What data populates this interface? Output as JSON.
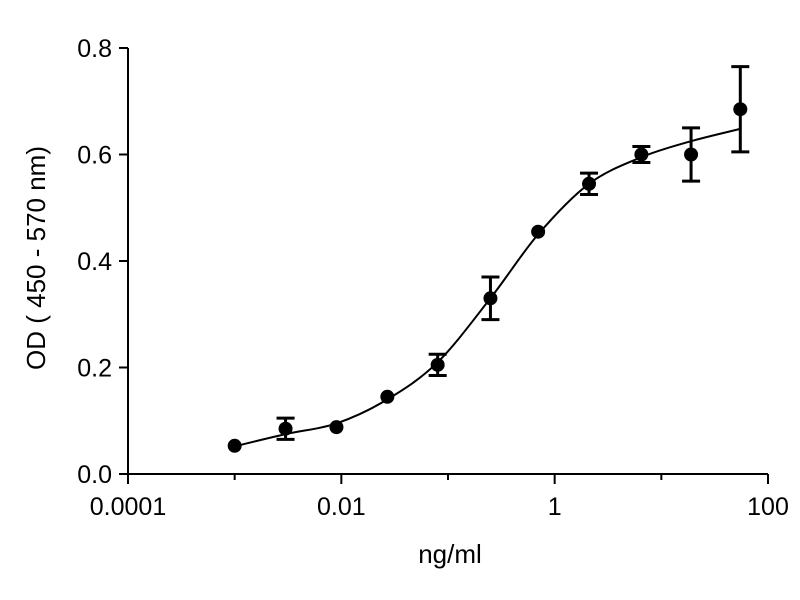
{
  "chart_data": {
    "type": "scatter",
    "title": "",
    "xlabel": "ng/ml",
    "ylabel": "OD ( 450 - 570 nm)",
    "x_scale": "log",
    "xlim": [
      0.0001,
      100
    ],
    "ylim": [
      0,
      0.8
    ],
    "x_ticks": [
      0.0001,
      0.01,
      1,
      100
    ],
    "x_tick_labels": [
      "0.0001",
      "0.01",
      "1",
      "100"
    ],
    "y_ticks": [
      0,
      0.2,
      0.4,
      0.6,
      0.8
    ],
    "y_tick_labels": [
      "0.0",
      "0.2",
      "0.4",
      "0.6",
      "0.8"
    ],
    "grid": false,
    "legend": "none",
    "series": [
      {
        "points": [
          {
            "x": 0.001,
            "y": 0.053,
            "err": 0.0
          },
          {
            "x": 0.003,
            "y": 0.085,
            "err": 0.02
          },
          {
            "x": 0.009,
            "y": 0.088,
            "err": 0.0
          },
          {
            "x": 0.027,
            "y": 0.145,
            "err": 0.0
          },
          {
            "x": 0.08,
            "y": 0.205,
            "err": 0.02
          },
          {
            "x": 0.25,
            "y": 0.33,
            "err": 0.04
          },
          {
            "x": 0.7,
            "y": 0.455,
            "err": 0.0
          },
          {
            "x": 2.1,
            "y": 0.545,
            "err": 0.02
          },
          {
            "x": 6.5,
            "y": 0.6,
            "err": 0.015
          },
          {
            "x": 19,
            "y": 0.6,
            "err": 0.05
          },
          {
            "x": 55,
            "y": 0.685,
            "err": 0.08
          }
        ],
        "fit_curve": {
          "x": [
            0.001,
            0.003,
            0.009,
            0.027,
            0.08,
            0.25,
            0.7,
            2.1,
            6.5,
            19,
            55
          ],
          "y": [
            0.052,
            0.075,
            0.095,
            0.14,
            0.21,
            0.33,
            0.45,
            0.545,
            0.595,
            0.625,
            0.648
          ]
        }
      }
    ],
    "colors": {
      "marker": "#000000",
      "line": "#000000",
      "axis": "#000000"
    }
  }
}
